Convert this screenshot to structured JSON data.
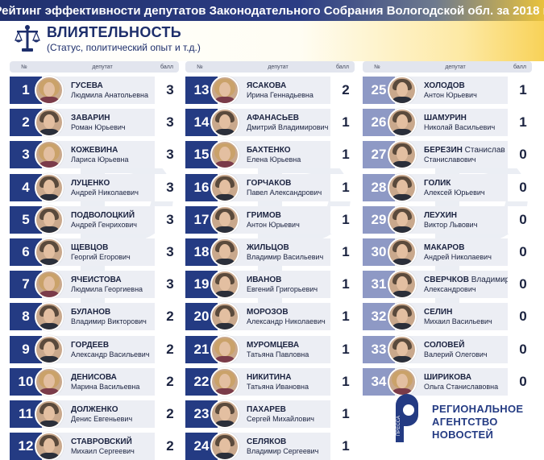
{
  "header": {
    "title": "Рейтинг эффективности депутатов Законодательного Собрания Вологодской обл. за 2018 г."
  },
  "section": {
    "title": "ВЛИЯТЕЛЬНОСТЬ",
    "subtitle": "(Статус, политический опыт и т.д.)"
  },
  "table_headers": {
    "num": "№",
    "deputy": "депутат",
    "score": "балл"
  },
  "columns": [
    {
      "rows": [
        {
          "n": "1",
          "surname": "ГУСЕВА",
          "extra": "",
          "rest": "Людмила Анатольевна",
          "score": "3",
          "g": "f"
        },
        {
          "n": "2",
          "surname": "ЗАВАРИН",
          "extra": "",
          "rest": "Роман Юрьевич",
          "score": "3",
          "g": "m"
        },
        {
          "n": "3",
          "surname": "КОЖЕВИНА",
          "extra": "",
          "rest": "Лариса Юрьевна",
          "score": "3",
          "g": "f"
        },
        {
          "n": "4",
          "surname": "ЛУЦЕНКО",
          "extra": "",
          "rest": "Андрей Николаевич",
          "score": "3",
          "g": "m"
        },
        {
          "n": "5",
          "surname": "ПОДВОЛОЦКИЙ",
          "extra": "",
          "rest": "Андрей Генрихович",
          "score": "3",
          "g": "m"
        },
        {
          "n": "6",
          "surname": "ЩЕВЦОВ",
          "extra": "",
          "rest": "Георгий Егорович",
          "score": "3",
          "g": "m"
        },
        {
          "n": "7",
          "surname": "ЯЧЕИСТОВА",
          "extra": "",
          "rest": "Людмила Георгиевна",
          "score": "3",
          "g": "f"
        },
        {
          "n": "8",
          "surname": "БУЛАНОВ",
          "extra": "",
          "rest": "Владимир Викторович",
          "score": "2",
          "g": "m"
        },
        {
          "n": "9",
          "surname": "ГОРДЕЕВ",
          "extra": "",
          "rest": "Александр Васильевич",
          "score": "2",
          "g": "m"
        },
        {
          "n": "10",
          "surname": "ДЕНИСОВА",
          "extra": "",
          "rest": "Марина Васильевна",
          "score": "2",
          "g": "f"
        },
        {
          "n": "11",
          "surname": "ДОЛЖЕНКО",
          "extra": "",
          "rest": "Денис Евгеньевич",
          "score": "2",
          "g": "m"
        },
        {
          "n": "12",
          "surname": "СТАВРОВСКИЙ",
          "extra": "",
          "rest": "Михаил Сергеевич",
          "score": "2",
          "g": "m"
        }
      ]
    },
    {
      "rows": [
        {
          "n": "13",
          "surname": "ЯСАКОВА",
          "extra": "",
          "rest": "Ирина Геннадьевна",
          "score": "2",
          "g": "f"
        },
        {
          "n": "14",
          "surname": "АФАНАСЬЕВ",
          "extra": "",
          "rest": "Дмитрий Владимирович",
          "score": "1",
          "g": "m"
        },
        {
          "n": "15",
          "surname": "БАХТЕНКО",
          "extra": "",
          "rest": "Елена Юрьевна",
          "score": "1",
          "g": "f"
        },
        {
          "n": "16",
          "surname": "ГОРЧАКОВ",
          "extra": "",
          "rest": "Павел Александрович",
          "score": "1",
          "g": "m"
        },
        {
          "n": "17",
          "surname": "ГРИМОВ",
          "extra": "",
          "rest": "Антон Юрьевич",
          "score": "1",
          "g": "m"
        },
        {
          "n": "18",
          "surname": "ЖИЛЬЦОВ",
          "extra": "",
          "rest": "Владимир Васильевич",
          "score": "1",
          "g": "m"
        },
        {
          "n": "19",
          "surname": "ИВАНОВ",
          "extra": "",
          "rest": "Евгений Григорьевич",
          "score": "1",
          "g": "m"
        },
        {
          "n": "20",
          "surname": "МОРОЗОВ",
          "extra": "",
          "rest": "Александр Николаевич",
          "score": "1",
          "g": "m"
        },
        {
          "n": "21",
          "surname": "МУРОМЦЕВА",
          "extra": "",
          "rest": "Татьяна Павловна",
          "score": "1",
          "g": "f"
        },
        {
          "n": "22",
          "surname": "НИКИТИНА",
          "extra": "",
          "rest": "Татьяна Ивановна",
          "score": "1",
          "g": "f"
        },
        {
          "n": "23",
          "surname": "ПАХАРЕВ",
          "extra": "",
          "rest": "Сергей Михайлович",
          "score": "1",
          "g": "m"
        },
        {
          "n": "24",
          "surname": "СЕЛЯКОВ",
          "extra": "",
          "rest": "Владимир Сергеевич",
          "score": "1",
          "g": "m"
        }
      ]
    },
    {
      "rows": [
        {
          "n": "25",
          "surname": "ХОЛОДОВ",
          "extra": "",
          "rest": "Антон Юрьевич",
          "score": "1",
          "g": "m"
        },
        {
          "n": "26",
          "surname": "ШАМУРИН",
          "extra": "",
          "rest": "Николай Васильевич",
          "score": "1",
          "g": "m"
        },
        {
          "n": "27",
          "surname": "БЕРЕЗИН",
          "extra": "Станислав",
          "rest": "Станиславович",
          "score": "0",
          "g": "m"
        },
        {
          "n": "28",
          "surname": "ГОЛИК",
          "extra": "",
          "rest": "Алексей Юрьевич",
          "score": "0",
          "g": "m"
        },
        {
          "n": "29",
          "surname": "ЛЕУХИН",
          "extra": "",
          "rest": "Виктор Львович",
          "score": "0",
          "g": "m"
        },
        {
          "n": "30",
          "surname": "МАКАРОВ",
          "extra": "",
          "rest": "Андрей Николаевич",
          "score": "0",
          "g": "m"
        },
        {
          "n": "31",
          "surname": "СВЕРЧКОВ",
          "extra": "Владимир",
          "rest": "Александрович",
          "score": "0",
          "g": "m"
        },
        {
          "n": "32",
          "surname": "СЕЛИН",
          "extra": "",
          "rest": "Михаил Васильевич",
          "score": "0",
          "g": "m"
        },
        {
          "n": "33",
          "surname": "СОЛОВЕЙ",
          "extra": "",
          "rest": "Валерий Олегович",
          "score": "0",
          "g": "m"
        },
        {
          "n": "34",
          "surname": "ШИРИКОВА",
          "extra": "",
          "rest": "Ольга Станиславовна",
          "score": "0",
          "g": "f"
        }
      ]
    }
  ],
  "agency": {
    "line1": "РЕГИОНАЛЬНОЕ",
    "line2": "АГЕНТСТВО",
    "line3": "НОВОСТЕЙ",
    "logo_text": "ПРЕССА"
  },
  "colors": {
    "num_dark": "#243b83",
    "num_light": "#8e99c5",
    "row_bg": "#eceef4",
    "title_text": "#1d2e6b"
  },
  "icons": {
    "section": "scales-of-justice-icon",
    "agency": "agency-r-logo-icon"
  }
}
